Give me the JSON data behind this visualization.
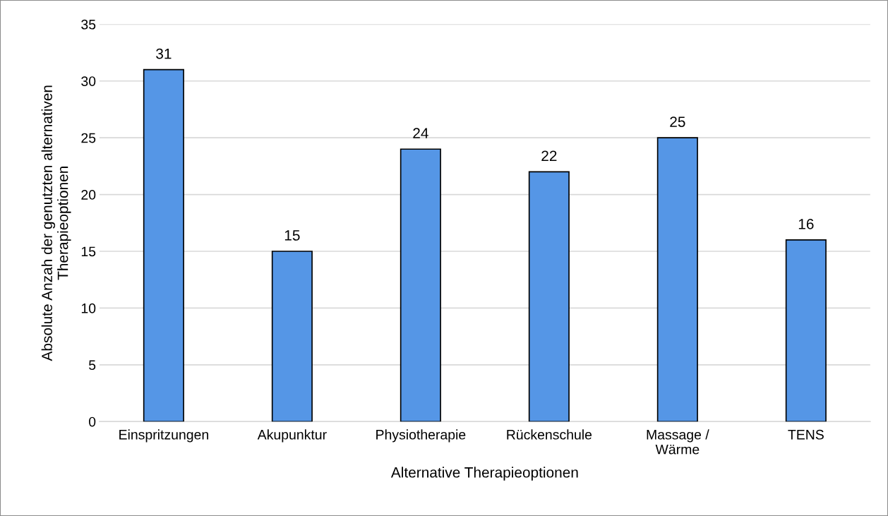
{
  "chart_data": {
    "type": "bar",
    "xlabel": "Alternative Therapieoptionen",
    "ylabel": "Absolute Anzah der genutzten alternativen\nTherapieoptionen",
    "categories": [
      "Einspritzungen",
      "Akupunktur",
      "Physiotherapie",
      "Rückenschule",
      "Massage /\nWärme",
      "TENS"
    ],
    "values": [
      31,
      15,
      24,
      22,
      25,
      16
    ],
    "color": "#5596e6",
    "ylim": [
      0,
      35
    ],
    "yticks": [
      0,
      5,
      10,
      15,
      20,
      25,
      30,
      35
    ],
    "grid": "y",
    "data_labels": true
  }
}
